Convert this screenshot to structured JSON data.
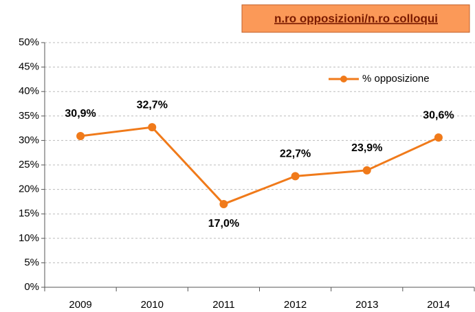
{
  "chart_data": {
    "type": "line",
    "title": "n.ro opposizioni/n.ro colloqui",
    "categories": [
      "2009",
      "2010",
      "2011",
      "2012",
      "2013",
      "2014"
    ],
    "series": [
      {
        "name": "% opposizione",
        "color": "#f07a1a",
        "values": [
          30.9,
          32.7,
          17.0,
          22.7,
          23.9,
          30.6
        ],
        "value_labels": [
          "30,9%",
          "32,7%",
          "17,0%",
          "22,7%",
          "23,9%",
          "30,6%"
        ]
      }
    ],
    "ylim": [
      0,
      50
    ],
    "yticks": [
      {
        "value": 0,
        "label": "0%"
      },
      {
        "value": 5,
        "label": "5%"
      },
      {
        "value": 10,
        "label": "10%"
      },
      {
        "value": 15,
        "label": "15%"
      },
      {
        "value": 20,
        "label": "20%"
      },
      {
        "value": 25,
        "label": "25%"
      },
      {
        "value": 30,
        "label": "30%"
      },
      {
        "value": 35,
        "label": "35%"
      },
      {
        "value": 40,
        "label": "40%"
      },
      {
        "value": 45,
        "label": "45%"
      },
      {
        "value": 50,
        "label": "50%"
      }
    ],
    "grid": true,
    "legend": "upper right"
  }
}
